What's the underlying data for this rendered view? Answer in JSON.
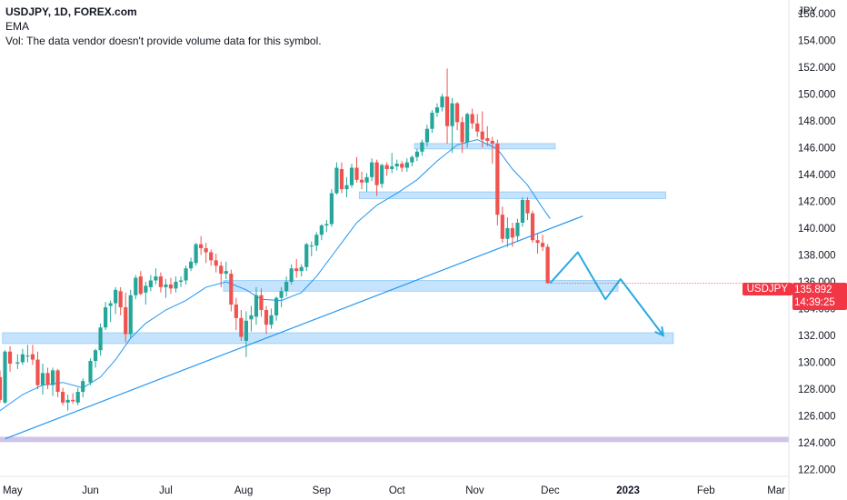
{
  "legend": {
    "symbol_line": "USDJPY, 1D, FOREX.com",
    "indicator": "EMA",
    "volume_note": "Vol: The data vendor doesn't provide volume data for this symbol."
  },
  "price_axis": {
    "currency": "JPY",
    "ticks": [
      "156.000",
      "154.000",
      "152.000",
      "150.000",
      "148.000",
      "146.000",
      "144.000",
      "142.000",
      "140.000",
      "138.000",
      "136.000",
      "134.000",
      "132.000",
      "130.000",
      "128.000",
      "126.000",
      "124.000",
      "122.000"
    ]
  },
  "time_axis": {
    "ticks": [
      "May",
      "Jun",
      "Jul",
      "Aug",
      "Sep",
      "Oct",
      "Nov",
      "Dec",
      "2023",
      "Feb",
      "Mar"
    ],
    "bold_tick": "2023"
  },
  "current_price": {
    "symbol": "USDJPY",
    "price": "135.892",
    "countdown": "14:39:25"
  },
  "colors": {
    "up": "#26a69a",
    "down": "#ef5350",
    "ema": "#2196f3",
    "zone": "#bbdefb",
    "zone_border": "#90caf9",
    "purple_zone": "#d1c4e9",
    "trendline": "#2196f3",
    "label_bg": "#f23645"
  },
  "chart_data": {
    "type": "candlestick",
    "symbol": "USDJPY",
    "timeframe": "1D",
    "ylim": [
      121.5,
      157
    ],
    "y_ticks": [
      156,
      154,
      152,
      150,
      148,
      146,
      144,
      142,
      140,
      138,
      136,
      134,
      132,
      130,
      128,
      126,
      124,
      122
    ],
    "x_range": [
      "2022-04-26",
      "2023-03-06"
    ],
    "x_ticks": [
      {
        "label": "May",
        "date": "2022-05-01"
      },
      {
        "label": "Jun",
        "date": "2022-06-01"
      },
      {
        "label": "Jul",
        "date": "2022-07-01"
      },
      {
        "label": "Aug",
        "date": "2022-08-01"
      },
      {
        "label": "Sep",
        "date": "2022-09-01"
      },
      {
        "label": "Oct",
        "date": "2022-10-01"
      },
      {
        "label": "Nov",
        "date": "2022-11-01"
      },
      {
        "label": "Dec",
        "date": "2022-12-01"
      },
      {
        "label": "2023",
        "date": "2023-01-01"
      },
      {
        "label": "Feb",
        "date": "2023-02-01"
      },
      {
        "label": "Mar",
        "date": "2023-03-01"
      }
    ],
    "series": [
      {
        "name": "USDJPY",
        "kind": "candles",
        "points": [
          [
            "2022-04-26",
            128.9,
            129.4,
            127.0,
            127.2
          ],
          [
            "2022-04-28",
            127.0,
            130.9,
            126.9,
            130.8
          ],
          [
            "2022-04-30",
            130.8,
            131.2,
            129.3,
            129.9
          ],
          [
            "2022-05-03",
            129.9,
            130.6,
            129.5,
            130.0
          ],
          [
            "2022-05-05",
            130.0,
            131.0,
            129.8,
            130.6
          ],
          [
            "2022-05-07",
            130.5,
            131.3,
            130.0,
            130.5
          ],
          [
            "2022-05-09",
            130.6,
            131.3,
            129.8,
            130.2
          ],
          [
            "2022-05-11",
            130.2,
            130.8,
            128.0,
            128.3
          ],
          [
            "2022-05-13",
            128.3,
            129.9,
            127.6,
            129.2
          ],
          [
            "2022-05-15",
            129.2,
            129.6,
            128.0,
            128.3
          ],
          [
            "2022-05-17",
            128.3,
            129.6,
            127.5,
            129.4
          ],
          [
            "2022-05-19",
            129.4,
            129.5,
            127.4,
            127.8
          ],
          [
            "2022-05-21",
            127.8,
            128.1,
            126.8,
            127.0
          ],
          [
            "2022-05-23",
            127.0,
            127.6,
            126.4,
            127.2
          ],
          [
            "2022-05-25",
            127.2,
            127.7,
            126.9,
            127.1
          ],
          [
            "2022-05-27",
            127.0,
            128.1,
            126.8,
            127.8
          ],
          [
            "2022-05-29",
            127.8,
            128.8,
            127.4,
            128.6
          ],
          [
            "2022-06-01",
            128.5,
            130.3,
            128.3,
            130.1
          ],
          [
            "2022-06-03",
            130.1,
            131.0,
            129.6,
            130.9
          ],
          [
            "2022-06-05",
            130.9,
            132.9,
            130.5,
            132.6
          ],
          [
            "2022-06-07",
            132.6,
            134.5,
            132.4,
            134.1
          ],
          [
            "2022-06-09",
            134.2,
            134.6,
            133.0,
            134.4
          ],
          [
            "2022-06-11",
            134.4,
            135.6,
            133.6,
            135.4
          ],
          [
            "2022-06-13",
            135.3,
            135.6,
            133.5,
            134.1
          ],
          [
            "2022-06-15",
            134.1,
            135.2,
            131.5,
            132.1
          ],
          [
            "2022-06-17",
            132.1,
            135.4,
            131.8,
            135.0
          ],
          [
            "2022-06-19",
            135.0,
            136.5,
            134.7,
            136.3
          ],
          [
            "2022-06-21",
            136.4,
            136.8,
            135.0,
            135.1
          ],
          [
            "2022-06-23",
            135.2,
            136.0,
            134.3,
            135.7
          ],
          [
            "2022-06-25",
            135.6,
            136.5,
            135.3,
            136.1
          ],
          [
            "2022-06-27",
            136.1,
            137.0,
            135.8,
            136.4
          ],
          [
            "2022-06-29",
            136.4,
            136.7,
            135.2,
            135.6
          ],
          [
            "2022-07-01",
            135.6,
            136.2,
            134.8,
            135.8
          ],
          [
            "2022-07-03",
            135.8,
            136.3,
            135.1,
            135.5
          ],
          [
            "2022-07-05",
            135.5,
            136.4,
            135.2,
            136.0
          ],
          [
            "2022-07-07",
            136.0,
            136.4,
            135.6,
            136.1
          ],
          [
            "2022-07-09",
            136.1,
            137.2,
            135.8,
            137.0
          ],
          [
            "2022-07-11",
            137.0,
            137.8,
            136.8,
            137.5
          ],
          [
            "2022-07-13",
            137.4,
            138.9,
            137.2,
            138.8
          ],
          [
            "2022-07-15",
            138.8,
            139.4,
            138.0,
            138.5
          ],
          [
            "2022-07-17",
            138.5,
            138.9,
            137.4,
            138.2
          ],
          [
            "2022-07-19",
            138.2,
            138.4,
            137.2,
            137.6
          ],
          [
            "2022-07-21",
            137.6,
            138.1,
            136.7,
            137.2
          ],
          [
            "2022-07-23",
            137.2,
            137.5,
            135.6,
            136.6
          ],
          [
            "2022-07-25",
            136.6,
            137.5,
            136.2,
            136.8
          ],
          [
            "2022-07-27",
            136.6,
            136.9,
            133.8,
            134.3
          ],
          [
            "2022-07-29",
            134.3,
            134.8,
            132.4,
            133.3
          ],
          [
            "2022-07-31",
            133.3,
            133.9,
            131.6,
            131.9
          ],
          [
            "2022-08-02",
            131.6,
            133.8,
            130.4,
            133.1
          ],
          [
            "2022-08-04",
            133.2,
            134.2,
            132.3,
            133.5
          ],
          [
            "2022-08-06",
            133.4,
            135.6,
            132.8,
            135.0
          ],
          [
            "2022-08-08",
            135.0,
            135.5,
            133.4,
            133.9
          ],
          [
            "2022-08-10",
            133.9,
            134.2,
            132.1,
            132.8
          ],
          [
            "2022-08-12",
            132.8,
            134.0,
            132.5,
            133.5
          ],
          [
            "2022-08-14",
            133.5,
            134.9,
            133.1,
            134.8
          ],
          [
            "2022-08-16",
            134.8,
            135.6,
            134.1,
            135.3
          ],
          [
            "2022-08-18",
            135.3,
            136.4,
            134.9,
            136.0
          ],
          [
            "2022-08-20",
            136.0,
            137.3,
            135.8,
            137.0
          ],
          [
            "2022-08-22",
            137.0,
            137.7,
            136.3,
            136.8
          ],
          [
            "2022-08-24",
            136.8,
            137.3,
            136.4,
            137.1
          ],
          [
            "2022-08-26",
            137.1,
            138.9,
            136.8,
            138.8
          ],
          [
            "2022-08-28",
            138.7,
            139.0,
            137.9,
            138.7
          ],
          [
            "2022-08-30",
            138.7,
            139.7,
            138.3,
            139.5
          ],
          [
            "2022-09-01",
            139.5,
            140.3,
            139.1,
            140.2
          ],
          [
            "2022-09-03",
            140.2,
            140.6,
            139.7,
            140.3
          ],
          [
            "2022-09-05",
            140.3,
            142.9,
            140.1,
            142.6
          ],
          [
            "2022-09-07",
            142.6,
            144.9,
            142.5,
            144.5
          ],
          [
            "2022-09-09",
            144.4,
            144.9,
            142.6,
            142.9
          ],
          [
            "2022-09-11",
            142.9,
            143.8,
            142.3,
            143.2
          ],
          [
            "2022-09-13",
            143.2,
            144.8,
            143.0,
            144.5
          ],
          [
            "2022-09-15",
            144.5,
            145.3,
            143.4,
            143.6
          ],
          [
            "2022-09-17",
            143.6,
            144.2,
            142.9,
            143.4
          ],
          [
            "2022-09-19",
            143.4,
            144.1,
            142.7,
            143.8
          ],
          [
            "2022-09-21",
            143.8,
            145.2,
            143.5,
            144.9
          ],
          [
            "2022-09-23",
            144.9,
            145.1,
            142.4,
            143.2
          ],
          [
            "2022-09-25",
            143.3,
            144.8,
            143.0,
            144.7
          ],
          [
            "2022-09-27",
            144.7,
            144.9,
            143.9,
            144.4
          ],
          [
            "2022-09-29",
            144.4,
            145.6,
            144.1,
            144.6
          ],
          [
            "2022-10-01",
            144.6,
            145.1,
            144.3,
            144.8
          ],
          [
            "2022-10-03",
            144.8,
            145.0,
            144.2,
            144.5
          ],
          [
            "2022-10-05",
            144.5,
            145.2,
            144.2,
            144.9
          ],
          [
            "2022-10-07",
            144.9,
            145.4,
            144.6,
            145.3
          ],
          [
            "2022-10-09",
            145.3,
            145.9,
            145.0,
            145.7
          ],
          [
            "2022-10-11",
            145.7,
            146.6,
            145.4,
            146.4
          ],
          [
            "2022-10-13",
            146.4,
            147.7,
            146.1,
            147.4
          ],
          [
            "2022-10-15",
            147.4,
            148.8,
            147.1,
            148.6
          ],
          [
            "2022-10-17",
            148.6,
            149.3,
            148.3,
            149.0
          ],
          [
            "2022-10-19",
            149.0,
            150.0,
            148.7,
            149.8
          ],
          [
            "2022-10-21",
            149.8,
            151.9,
            146.3,
            147.6
          ],
          [
            "2022-10-23",
            147.6,
            149.7,
            145.6,
            149.3
          ],
          [
            "2022-10-25",
            149.3,
            149.4,
            147.3,
            147.9
          ],
          [
            "2022-10-27",
            147.9,
            148.3,
            145.6,
            146.4
          ],
          [
            "2022-10-29",
            146.4,
            148.6,
            146.0,
            148.5
          ],
          [
            "2022-10-31",
            148.5,
            148.9,
            147.4,
            147.8
          ],
          [
            "2022-11-02",
            147.8,
            148.5,
            146.8,
            147.2
          ],
          [
            "2022-11-04",
            147.2,
            148.7,
            146.0,
            146.6
          ],
          [
            "2022-11-06",
            146.7,
            147.6,
            146.1,
            146.5
          ],
          [
            "2022-11-08",
            146.5,
            146.8,
            144.8,
            146.3
          ],
          [
            "2022-11-10",
            146.3,
            146.6,
            140.2,
            141.0
          ],
          [
            "2022-11-12",
            141.0,
            141.6,
            138.9,
            139.2
          ],
          [
            "2022-11-14",
            139.2,
            140.8,
            138.6,
            140.0
          ],
          [
            "2022-11-16",
            140.0,
            140.4,
            138.6,
            139.3
          ],
          [
            "2022-11-18",
            139.4,
            140.7,
            139.0,
            140.4
          ],
          [
            "2022-11-20",
            140.4,
            142.3,
            140.1,
            142.1
          ],
          [
            "2022-11-22",
            142.1,
            142.3,
            140.6,
            141.1
          ],
          [
            "2022-11-24",
            141.1,
            141.3,
            138.9,
            139.1
          ],
          [
            "2022-11-26",
            139.1,
            139.6,
            138.1,
            138.9
          ],
          [
            "2022-11-28",
            138.9,
            139.5,
            138.3,
            138.6
          ],
          [
            "2022-11-30",
            138.6,
            138.8,
            135.9,
            135.9
          ]
        ]
      },
      {
        "name": "EMA",
        "kind": "line",
        "points": [
          [
            "2022-04-26",
            126.4
          ],
          [
            "2022-05-05",
            127.6
          ],
          [
            "2022-05-13",
            128.3
          ],
          [
            "2022-05-21",
            128.5
          ],
          [
            "2022-05-29",
            128.1
          ],
          [
            "2022-06-05",
            128.9
          ],
          [
            "2022-06-11",
            130.2
          ],
          [
            "2022-06-17",
            131.8
          ],
          [
            "2022-06-23",
            132.9
          ],
          [
            "2022-07-01",
            133.9
          ],
          [
            "2022-07-09",
            134.6
          ],
          [
            "2022-07-17",
            135.6
          ],
          [
            "2022-07-25",
            136.0
          ],
          [
            "2022-08-02",
            135.4
          ],
          [
            "2022-08-08",
            134.7
          ],
          [
            "2022-08-16",
            134.6
          ],
          [
            "2022-08-24",
            135.2
          ],
          [
            "2022-08-30",
            136.4
          ],
          [
            "2022-09-07",
            138.4
          ],
          [
            "2022-09-15",
            140.4
          ],
          [
            "2022-09-23",
            141.7
          ],
          [
            "2022-10-01",
            142.6
          ],
          [
            "2022-10-09",
            143.6
          ],
          [
            "2022-10-17",
            145.0
          ],
          [
            "2022-10-25",
            146.2
          ],
          [
            "2022-11-02",
            146.6
          ],
          [
            "2022-11-10",
            145.9
          ],
          [
            "2022-11-16",
            144.4
          ],
          [
            "2022-11-22",
            143.2
          ],
          [
            "2022-11-28",
            141.5
          ],
          [
            "2022-12-01",
            140.7
          ]
        ]
      }
    ],
    "annotations": {
      "zones": [
        {
          "color": "blue",
          "from": "2022-04-27",
          "to": "2023-01-19",
          "y1": 131.4,
          "y2": 132.2
        },
        {
          "color": "blue",
          "from": "2022-07-24",
          "to": "2022-12-28",
          "y1": 135.3,
          "y2": 136.1
        },
        {
          "color": "blue",
          "from": "2022-09-16",
          "to": "2023-01-16",
          "y1": 142.2,
          "y2": 142.7
        },
        {
          "color": "blue",
          "from": "2022-10-08",
          "to": "2022-12-03",
          "y1": 145.9,
          "y2": 146.3
        },
        {
          "color": "purple",
          "from": "2022-04-26",
          "to": "2023-03-06",
          "y1": 124.05,
          "y2": 124.45
        }
      ],
      "trendline": {
        "from": [
          "2022-04-28",
          124.3
        ],
        "to": [
          "2022-12-14",
          140.9
        ]
      },
      "projection": [
        [
          "2022-12-01",
          135.9
        ],
        [
          "2022-12-12",
          138.2
        ],
        [
          "2022-12-23",
          134.7
        ],
        [
          "2022-12-29",
          136.2
        ],
        [
          "2023-01-15",
          132.0
        ]
      ]
    }
  }
}
